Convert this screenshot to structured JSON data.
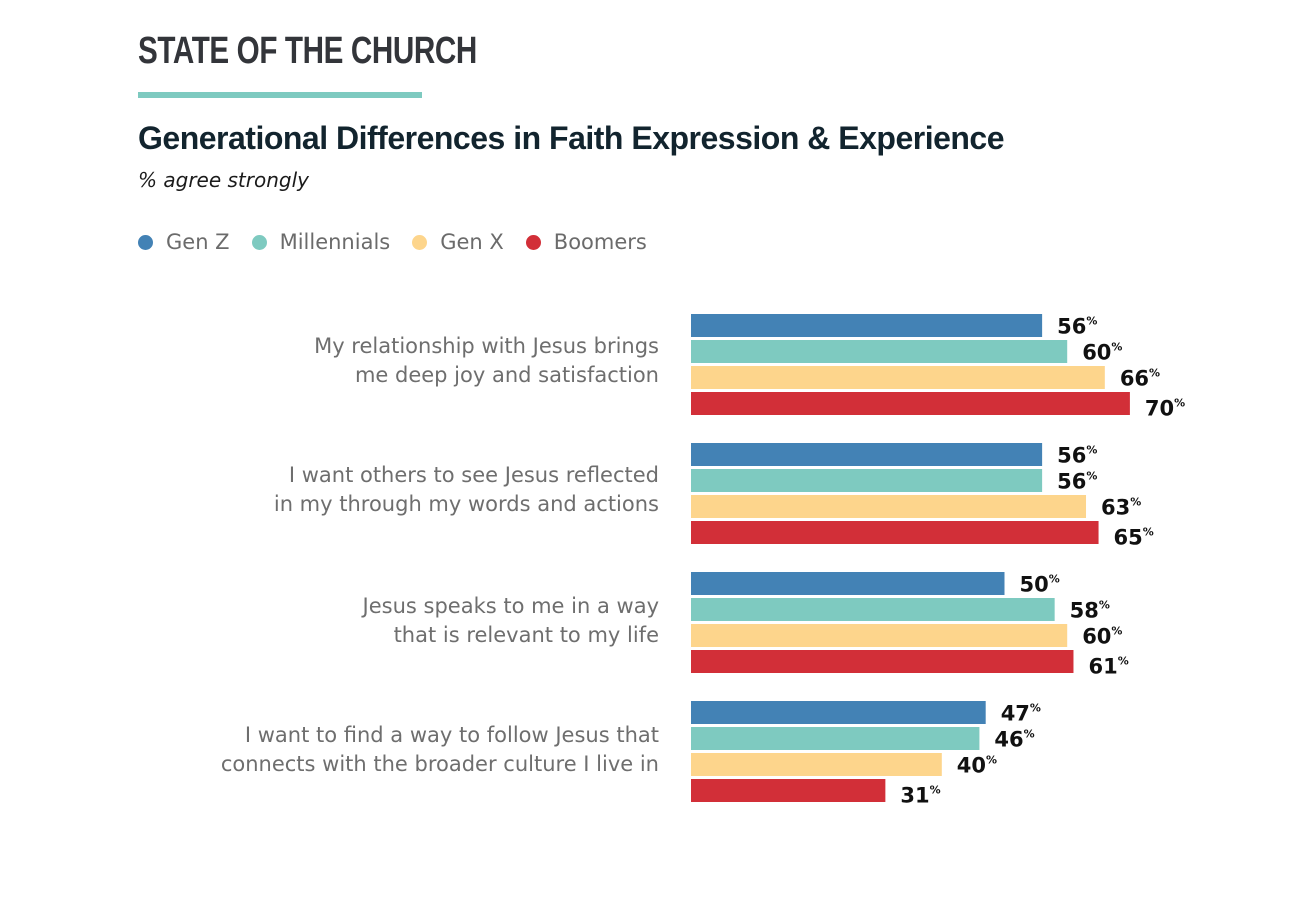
{
  "header": {
    "brand": "STATE OF THE CHURCH",
    "brand_rule_color": "#7ecac0"
  },
  "chart_data": {
    "type": "bar",
    "orientation": "horizontal",
    "title": "Generational Differences in Faith Expression & Experience",
    "subtitle": "% agree strongly",
    "xlabel": "",
    "ylabel": "",
    "value_suffix": "%",
    "xlim": [
      0,
      100
    ],
    "grid": false,
    "legend_position": "top-left",
    "categories": [
      "My relationship with Jesus brings me deep joy and satisfaction",
      "I want others to see Jesus reflected in my through my words and actions",
      "Jesus speaks to me in a way that is relevant to my life",
      "I want to find a way to follow Jesus that connects with the broader culture I live in"
    ],
    "category_lines": [
      [
        "My relationship with Jesus brings",
        "me deep joy and satisfaction"
      ],
      [
        "I want others to see Jesus reflected",
        "in my through my words and actions"
      ],
      [
        "Jesus speaks to me in a way",
        "that is relevant to my life"
      ],
      [
        "I want to find a way to follow Jesus that",
        "connects with the broader culture I live in"
      ]
    ],
    "series": [
      {
        "name": "Gen Z",
        "color": "#4382b5",
        "values": [
          56,
          56,
          50,
          47
        ]
      },
      {
        "name": "Millennials",
        "color": "#7ecac0",
        "values": [
          60,
          56,
          58,
          46
        ]
      },
      {
        "name": "Gen X",
        "color": "#fdd58c",
        "values": [
          66,
          63,
          60,
          40
        ]
      },
      {
        "name": "Boomers",
        "color": "#d22f38",
        "values": [
          70,
          65,
          61,
          31
        ]
      }
    ]
  }
}
